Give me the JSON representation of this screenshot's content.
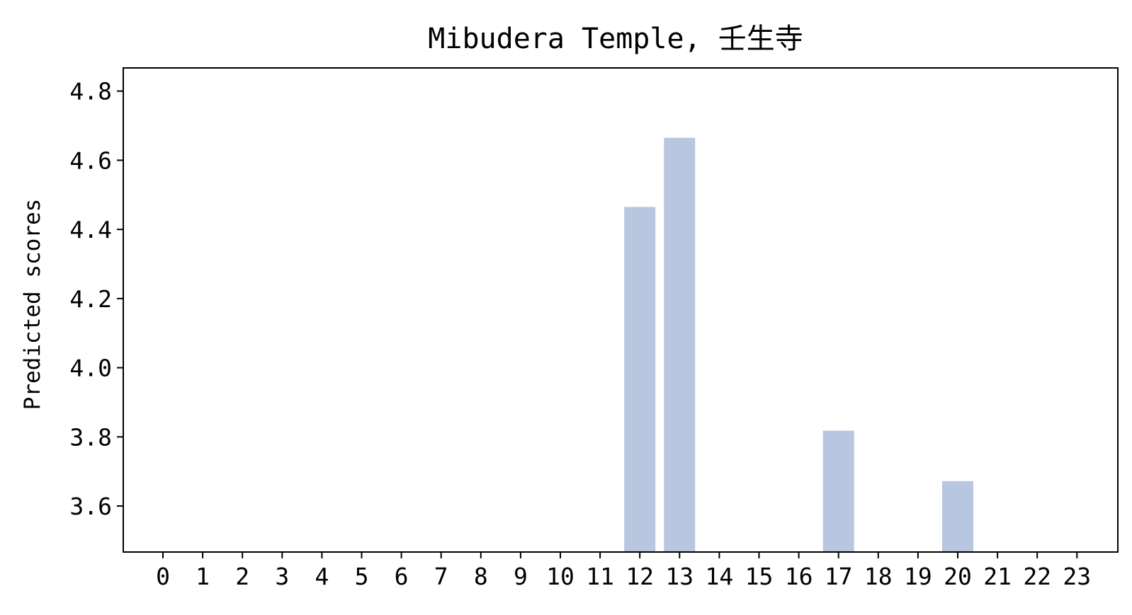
{
  "chart_data": {
    "type": "bar",
    "title": "Mibudera Temple, 壬生寺",
    "xlabel": "",
    "ylabel": "Predicted scores",
    "categories": [
      "0",
      "1",
      "2",
      "3",
      "4",
      "5",
      "6",
      "7",
      "8",
      "9",
      "10",
      "11",
      "12",
      "13",
      "14",
      "15",
      "16",
      "17",
      "18",
      "19",
      "20",
      "21",
      "22",
      "23"
    ],
    "values": [
      null,
      null,
      null,
      null,
      null,
      null,
      null,
      null,
      null,
      null,
      null,
      null,
      4.465,
      4.665,
      null,
      null,
      null,
      3.818,
      null,
      null,
      3.672,
      null,
      null,
      null
    ],
    "ylim": [
      3.467,
      4.867
    ],
    "yticks": [
      "3.6",
      "3.8",
      "4.0",
      "4.2",
      "4.4",
      "4.6",
      "4.8"
    ],
    "bar_color": "#b9c6e0",
    "grid": false,
    "legend": "none"
  }
}
